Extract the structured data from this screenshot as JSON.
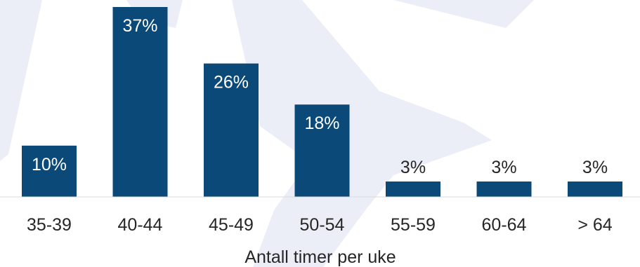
{
  "chart_data": {
    "type": "bar",
    "categories": [
      "35-39",
      "40-44",
      "45-49",
      "50-54",
      "55-59",
      "60-64",
      "> 64"
    ],
    "values": [
      10,
      37,
      26,
      18,
      3,
      3,
      3
    ],
    "value_labels": [
      "10%",
      "37%",
      "26%",
      "18%",
      "3%",
      "3%",
      "3%"
    ],
    "xlabel": "Antall timer per uke",
    "ylabel": "",
    "ylim": [
      0,
      37
    ],
    "grid": false,
    "legend": "none"
  },
  "colors": {
    "bar": "#0b4a78",
    "label_inside": "#ffffff",
    "label_outside": "#262626",
    "baseline": "#d9d9d9",
    "watermark": "#eceef7"
  }
}
